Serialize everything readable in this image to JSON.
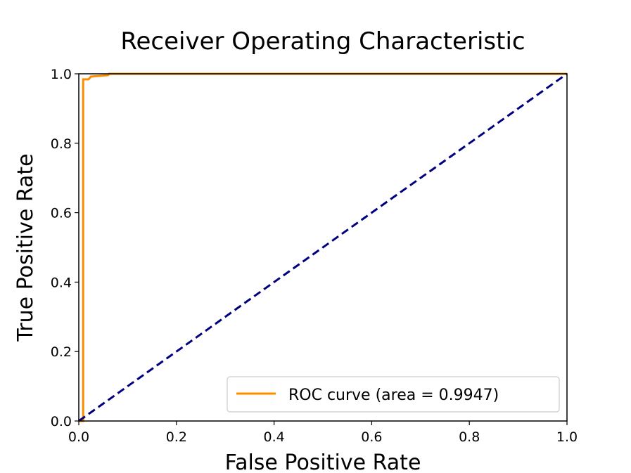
{
  "chart_data": {
    "type": "line",
    "title": "Receiver Operating Characteristic",
    "xlabel": "False Positive Rate",
    "ylabel": "True Positive Rate",
    "xlim": [
      0.0,
      1.0
    ],
    "ylim": [
      0.0,
      1.0
    ],
    "xticks": [
      "0.0",
      "0.2",
      "0.4",
      "0.6",
      "0.8",
      "1.0"
    ],
    "yticks": [
      "0.0",
      "0.2",
      "0.4",
      "0.6",
      "0.8",
      "1.0"
    ],
    "grid": false,
    "legend_position": "lower-right",
    "series": [
      {
        "name": "ROC curve (area = 0.9947)",
        "color": "#ff8c00",
        "style": "solid",
        "x": [
          0.0,
          0.009,
          0.009,
          0.02,
          0.025,
          0.06,
          0.062,
          1.0
        ],
        "y": [
          0.0,
          0.0,
          0.984,
          0.984,
          0.992,
          0.996,
          1.0,
          1.0
        ]
      },
      {
        "color": "#000080",
        "style": "dashed",
        "x": [
          0.0,
          1.0
        ],
        "y": [
          0.0,
          1.0
        ]
      }
    ]
  }
}
